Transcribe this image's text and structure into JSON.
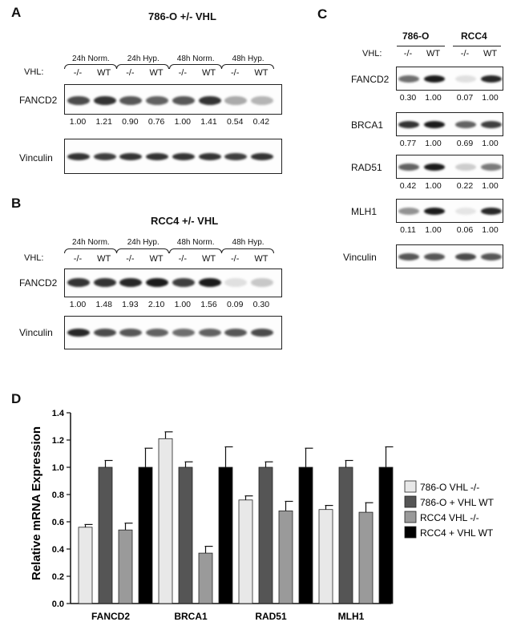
{
  "panel_a": {
    "label": "A",
    "title": "786-O +/- VHL",
    "conditions": [
      "24h Norm.",
      "24h Hyp.",
      "48h Norm.",
      "48h Hyp."
    ],
    "vhl_label": "VHL:",
    "genotypes": [
      "-/-",
      "WT",
      "-/-",
      "WT",
      "-/-",
      "WT",
      "-/-",
      "WT"
    ],
    "fancd2_label": "FANCD2",
    "vinculin_label": "Vinculin",
    "fancd2_quant": [
      "1.00",
      "1.21",
      "0.90",
      "0.76",
      "1.00",
      "1.41",
      "0.54",
      "0.42"
    ]
  },
  "panel_b": {
    "label": "B",
    "title": "RCC4 +/- VHL",
    "conditions": [
      "24h Norm.",
      "24h Hyp.",
      "48h Norm.",
      "48h Hyp."
    ],
    "vhl_label": "VHL:",
    "genotypes": [
      "-/-",
      "WT",
      "-/-",
      "WT",
      "-/-",
      "WT",
      "-/-",
      "WT"
    ],
    "fancd2_label": "FANCD2",
    "vinculin_label": "Vinculin",
    "fancd2_quant": [
      "1.00",
      "1.48",
      "1.93",
      "2.10",
      "1.00",
      "1.56",
      "0.09",
      "0.30"
    ]
  },
  "panel_c": {
    "label": "C",
    "cell_lines": [
      "786-O",
      "RCC4"
    ],
    "vhl_label": "VHL:",
    "genotypes": [
      "-/-",
      "WT",
      "-/-",
      "WT"
    ],
    "rows": [
      {
        "label": "FANCD2",
        "quant": [
          "0.30",
          "1.00",
          "0.07",
          "1.00"
        ]
      },
      {
        "label": "BRCA1",
        "quant": [
          "0.77",
          "1.00",
          "0.69",
          "1.00"
        ]
      },
      {
        "label": "RAD51",
        "quant": [
          "0.42",
          "1.00",
          "0.22",
          "1.00"
        ]
      },
      {
        "label": "MLH1",
        "quant": [
          "0.11",
          "1.00",
          "0.06",
          "1.00"
        ]
      },
      {
        "label": "Vinculin",
        "quant": []
      }
    ]
  },
  "panel_d": {
    "label": "D"
  },
  "chart_data": {
    "type": "bar",
    "title": "",
    "xlabel": "",
    "ylabel": "Relative mRNA Expression",
    "ylim": [
      0,
      1.4
    ],
    "yticks": [
      "0.0",
      "0.2",
      "0.4",
      "0.6",
      "0.8",
      "1.0",
      "1.2",
      "1.4"
    ],
    "categories": [
      "FANCD2",
      "BRCA1",
      "RAD51",
      "MLH1"
    ],
    "series": [
      {
        "name": "786-O VHL -/-",
        "color": "#e8e8e8",
        "values": [
          0.56,
          1.21,
          0.76,
          0.69
        ],
        "errors": [
          0.02,
          0.05,
          0.03,
          0.03
        ]
      },
      {
        "name": "786-O + VHL WT",
        "color": "#555555",
        "values": [
          1.0,
          1.0,
          1.0,
          1.0
        ],
        "errors": [
          0.05,
          0.04,
          0.04,
          0.05
        ]
      },
      {
        "name": "RCC4 VHL -/-",
        "color": "#9a9a9a",
        "values": [
          0.54,
          0.37,
          0.68,
          0.67
        ],
        "errors": [
          0.05,
          0.05,
          0.07,
          0.07
        ]
      },
      {
        "name": "RCC4 + VHL WT",
        "color": "#000000",
        "values": [
          1.0,
          1.0,
          1.0,
          1.0
        ],
        "errors": [
          0.14,
          0.15,
          0.14,
          0.15
        ]
      }
    ],
    "legend_position": "right"
  }
}
